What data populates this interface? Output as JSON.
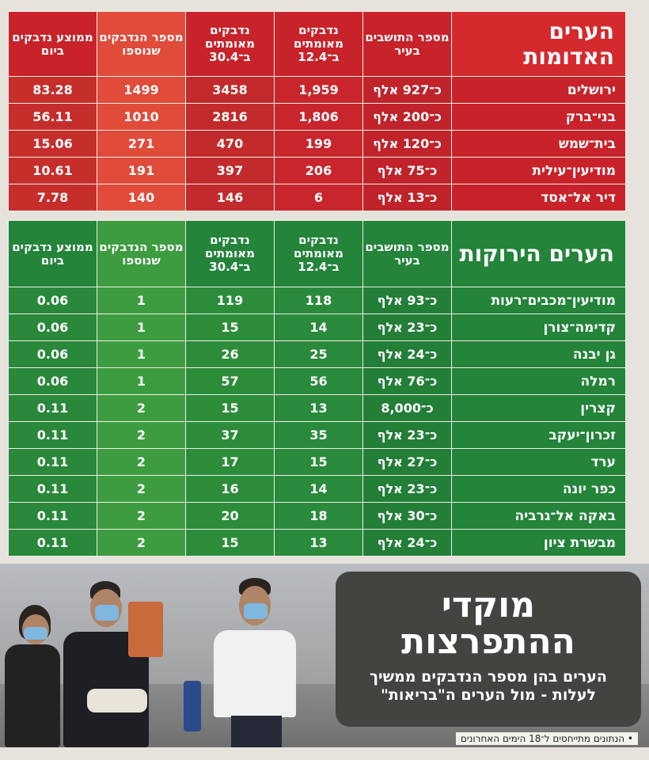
{
  "red": {
    "title": "הערים האדומות",
    "headers": [
      "מספר התושבים בעיר",
      "נדבקים מאומתים ב־12.4",
      "נדבקים מאומתים ב־30.4",
      "מספר הנדבקים שנוספו",
      "ממוצע נדבקים ביום"
    ],
    "rows": [
      {
        "city": "ירושלים",
        "pop": "כ־927 אלף",
        "c124": "1,959",
        "c304": "3458",
        "added": "1499",
        "avg": "83.28"
      },
      {
        "city": "בני־ברק",
        "pop": "כ־200 אלף",
        "c124": "1,806",
        "c304": "2816",
        "added": "1010",
        "avg": "56.11"
      },
      {
        "city": "בית־שמש",
        "pop": "כ־120 אלף",
        "c124": "199",
        "c304": "470",
        "added": "271",
        "avg": "15.06"
      },
      {
        "city": "מודיעין־עילית",
        "pop": "כ־75 אלף",
        "c124": "206",
        "c304": "397",
        "added": "191",
        "avg": "10.61"
      },
      {
        "city": "דיר אל־אסד",
        "pop": "כ־13 אלף",
        "c124": "6",
        "c304": "146",
        "added": "140",
        "avg": "7.78"
      }
    ]
  },
  "green": {
    "title": "הערים הירוקות",
    "headers": [
      "מספר התושבים בעיר",
      "נדבקים מאומתים ב־12.4",
      "נדבקים מאומתים ב־30.4",
      "מספר הנדבקים שנוספו",
      "ממוצע נדבקים ביום"
    ],
    "rows": [
      {
        "city": "מודיעין־מכבים־רעות",
        "pop": "כ־93 אלף",
        "c124": "118",
        "c304": "119",
        "added": "1",
        "avg": "0.06"
      },
      {
        "city": "קדימה־צורן",
        "pop": "כ־23 אלף",
        "c124": "14",
        "c304": "15",
        "added": "1",
        "avg": "0.06"
      },
      {
        "city": "גן יבנה",
        "pop": "כ־24 אלף",
        "c124": "25",
        "c304": "26",
        "added": "1",
        "avg": "0.06"
      },
      {
        "city": "רמלה",
        "pop": "כ־76 אלף",
        "c124": "56",
        "c304": "57",
        "added": "1",
        "avg": "0.06"
      },
      {
        "city": "קצרין",
        "pop": "כ־8,000",
        "c124": "13",
        "c304": "15",
        "added": "2",
        "avg": "0.11"
      },
      {
        "city": "זכרון־יעקב",
        "pop": "כ־23 אלף",
        "c124": "35",
        "c304": "37",
        "added": "2",
        "avg": "0.11"
      },
      {
        "city": "ערד",
        "pop": "כ־27 אלף",
        "c124": "15",
        "c304": "17",
        "added": "2",
        "avg": "0.11"
      },
      {
        "city": "כפר יונה",
        "pop": "כ־23 אלף",
        "c124": "14",
        "c304": "16",
        "added": "2",
        "avg": "0.11"
      },
      {
        "city": "באקה אל־גרביה",
        "pop": "כ־30 אלף",
        "c124": "18",
        "c304": "20",
        "added": "2",
        "avg": "0.11"
      },
      {
        "city": "מבשרת ציון",
        "pop": "כ־24 אלף",
        "c124": "13",
        "c304": "15",
        "added": "2",
        "avg": "0.11"
      }
    ]
  },
  "callout": {
    "headline_line1": "מוקדי",
    "headline_line2": "ההתפרצות",
    "subtitle": "הערים בהן מספר הנדבקים ממשיך לעלות - מול הערים ה\"בריאות\""
  },
  "footnote": "• הנתונים מתייחסים ל־18 הימים האחרונים"
}
